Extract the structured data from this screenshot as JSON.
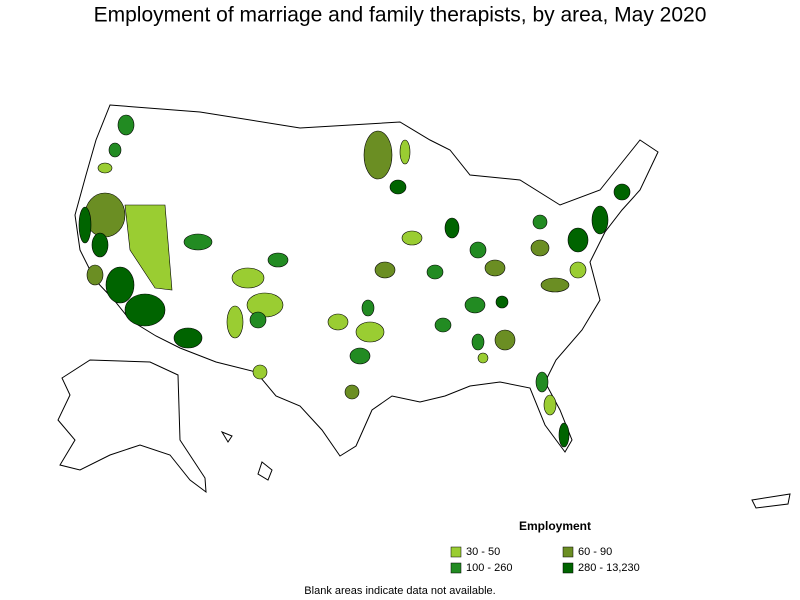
{
  "title": "Employment of marriage and family therapists, by area, May 2020",
  "legend": {
    "title": "Employment",
    "items": [
      {
        "label": "30 - 50",
        "color": "#9acd32"
      },
      {
        "label": "60 - 90",
        "color": "#6b8e23"
      },
      {
        "label": "100 - 260",
        "color": "#228b22"
      },
      {
        "label": "280 - 13,230",
        "color": "#006400"
      }
    ]
  },
  "note": "Blank areas indicate data not available."
}
